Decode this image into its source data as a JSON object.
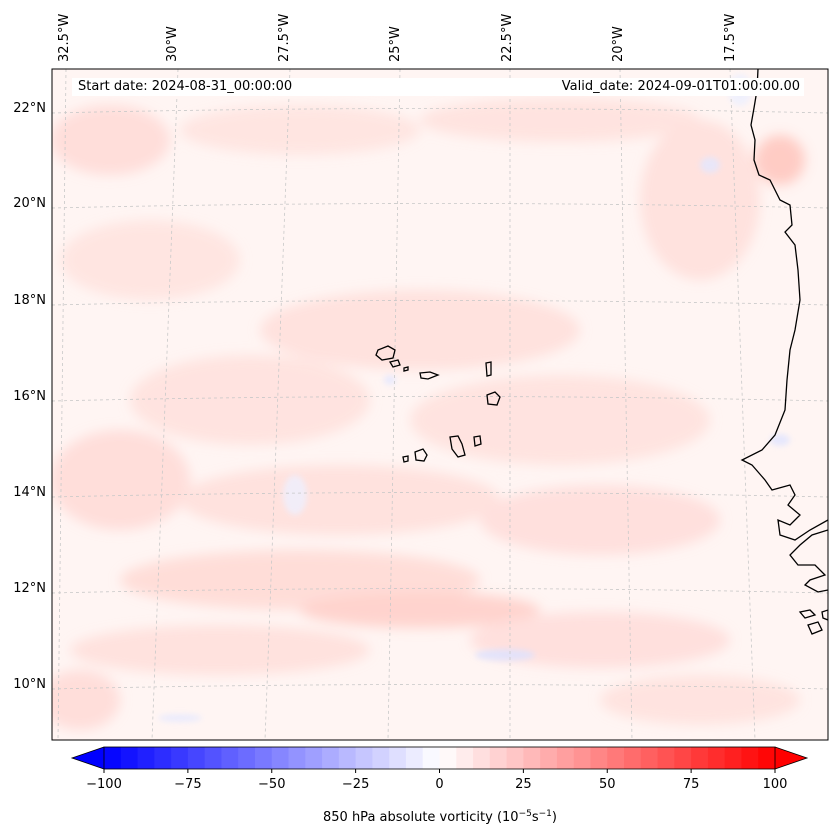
{
  "annotations": {
    "start_date": "Start date: 2024-08-31_00:00:00",
    "valid_date": "Valid_date: 2024-09-01T01:00:00.00"
  },
  "longitude_labels": [
    "32.5°W",
    "30°W",
    "27.5°W",
    "25°W",
    "22.5°W",
    "20°W",
    "17.5°W"
  ],
  "latitude_labels": [
    "22°N",
    "20°N",
    "18°N",
    "16°N",
    "14°N",
    "12°N",
    "10°N"
  ],
  "colorbar": {
    "label_prefix": "850 hPa absolute vorticity (10",
    "label_exp1": "−5",
    "label_mid": "s",
    "label_exp2": "−1",
    "label_suffix": ")",
    "ticks": [
      "−100",
      "−75",
      "−50",
      "−25",
      "0",
      "25",
      "50",
      "75",
      "100"
    ],
    "min": -100,
    "max": 100,
    "colors": {
      "negative": "#0000ff",
      "zero": "#ffffff",
      "positive": "#ff0000"
    }
  },
  "map": {
    "background_tint": "#fff5f3",
    "coastline_color": "#000000",
    "gridline_color": "#c8c8c8"
  }
}
